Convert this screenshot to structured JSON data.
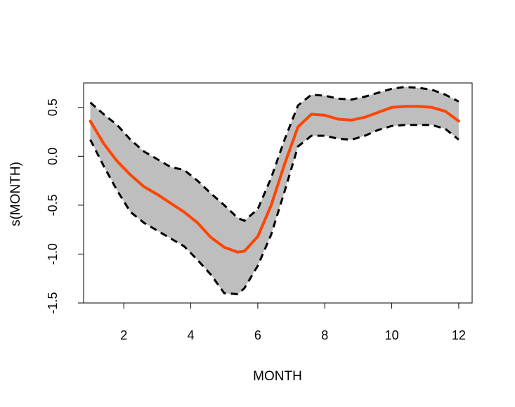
{
  "chart_data": {
    "type": "line",
    "title": "",
    "xlabel": "MONTH",
    "ylabel": "s(MONTH)",
    "xlim": [
      0.8,
      12.4
    ],
    "ylim": [
      -1.5,
      0.75
    ],
    "xticks": [
      2,
      4,
      6,
      8,
      10,
      12
    ],
    "yticks": [
      -1.5,
      -1.0,
      -0.5,
      0.0,
      0.5
    ],
    "xtick_labels": [
      "2",
      "4",
      "6",
      "8",
      "10",
      "12"
    ],
    "ytick_labels": [
      "-1.5",
      "-1.0",
      "-0.5",
      "0.0",
      "0.5"
    ],
    "grid": false,
    "legend": "none",
    "colors": {
      "fit": "#ff4500",
      "band": "#bebebe",
      "bounds": "#000000"
    },
    "series": [
      {
        "role": "fit",
        "x": [
          1,
          1.4,
          1.8,
          2.2,
          2.6,
          3.0,
          3.4,
          3.8,
          4.2,
          4.6,
          5.0,
          5.4,
          5.6,
          6.0,
          6.4,
          6.8,
          7.2,
          7.6,
          8.0,
          8.4,
          8.8,
          9.2,
          9.6,
          10.0,
          10.4,
          10.8,
          11.2,
          11.6,
          12.0
        ],
        "y": [
          0.36,
          0.13,
          -0.05,
          -0.19,
          -0.31,
          -0.39,
          -0.48,
          -0.57,
          -0.68,
          -0.83,
          -0.93,
          -0.98,
          -0.97,
          -0.82,
          -0.5,
          -0.08,
          0.3,
          0.43,
          0.42,
          0.38,
          0.37,
          0.4,
          0.45,
          0.5,
          0.51,
          0.51,
          0.5,
          0.46,
          0.36
        ]
      },
      {
        "role": "upper",
        "x": [
          1,
          1.4,
          1.8,
          2.2,
          2.6,
          3.0,
          3.4,
          3.8,
          4.2,
          4.6,
          5.0,
          5.4,
          5.6,
          6.0,
          6.4,
          6.8,
          7.2,
          7.6,
          8.0,
          8.4,
          8.8,
          9.2,
          9.6,
          10.0,
          10.4,
          10.8,
          11.2,
          11.6,
          12.0
        ],
        "y": [
          0.55,
          0.43,
          0.32,
          0.17,
          0.05,
          -0.03,
          -0.11,
          -0.14,
          -0.25,
          -0.38,
          -0.5,
          -0.63,
          -0.66,
          -0.54,
          -0.22,
          0.17,
          0.52,
          0.63,
          0.62,
          0.59,
          0.58,
          0.61,
          0.65,
          0.69,
          0.71,
          0.7,
          0.68,
          0.63,
          0.56
        ]
      },
      {
        "role": "lower",
        "x": [
          1,
          1.4,
          1.8,
          2.2,
          2.6,
          3.0,
          3.4,
          3.8,
          4.2,
          4.6,
          5.0,
          5.4,
          5.6,
          6.0,
          6.4,
          6.8,
          7.2,
          7.6,
          8.0,
          8.4,
          8.8,
          9.2,
          9.6,
          10.0,
          10.4,
          10.8,
          11.2,
          11.6,
          12.0
        ],
        "y": [
          0.17,
          -0.1,
          -0.35,
          -0.57,
          -0.68,
          -0.76,
          -0.84,
          -0.92,
          -1.06,
          -1.21,
          -1.4,
          -1.41,
          -1.35,
          -1.12,
          -0.8,
          -0.36,
          0.1,
          0.21,
          0.21,
          0.18,
          0.17,
          0.21,
          0.27,
          0.31,
          0.32,
          0.32,
          0.32,
          0.28,
          0.17
        ]
      }
    ]
  }
}
